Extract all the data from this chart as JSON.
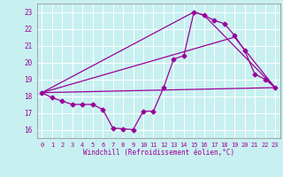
{
  "xlabel": "Windchill (Refroidissement éolien,°C)",
  "bg_color": "#c8f0f0",
  "line_color": "#990099",
  "grid_color": "#ffffff",
  "xlim": [
    -0.5,
    23.5
  ],
  "ylim": [
    15.5,
    23.5
  ],
  "yticks": [
    16,
    17,
    18,
    19,
    20,
    21,
    22,
    23
  ],
  "xticks": [
    0,
    1,
    2,
    3,
    4,
    5,
    6,
    7,
    8,
    9,
    10,
    11,
    12,
    13,
    14,
    15,
    16,
    17,
    18,
    19,
    20,
    21,
    22,
    23
  ],
  "main_x": [
    0,
    1,
    2,
    3,
    4,
    5,
    6,
    7,
    8,
    9,
    10,
    11,
    12,
    13,
    14,
    15,
    16,
    17,
    18,
    19,
    20,
    21,
    22,
    23
  ],
  "main_y": [
    18.2,
    17.9,
    17.7,
    17.5,
    17.5,
    17.5,
    17.2,
    16.1,
    16.05,
    16.0,
    17.1,
    17.1,
    18.5,
    20.2,
    20.4,
    23.0,
    22.8,
    22.5,
    22.3,
    21.6,
    20.7,
    19.3,
    19.0,
    18.5
  ],
  "line2_x": [
    0,
    15,
    16,
    23
  ],
  "line2_y": [
    18.2,
    23.0,
    22.8,
    18.5
  ],
  "line3_x": [
    0,
    19,
    23
  ],
  "line3_y": [
    18.2,
    21.5,
    18.5
  ],
  "line4_x": [
    0,
    23
  ],
  "line4_y": [
    18.2,
    18.5
  ],
  "marker": "D",
  "markersize": 2.5,
  "linewidth": 0.9
}
